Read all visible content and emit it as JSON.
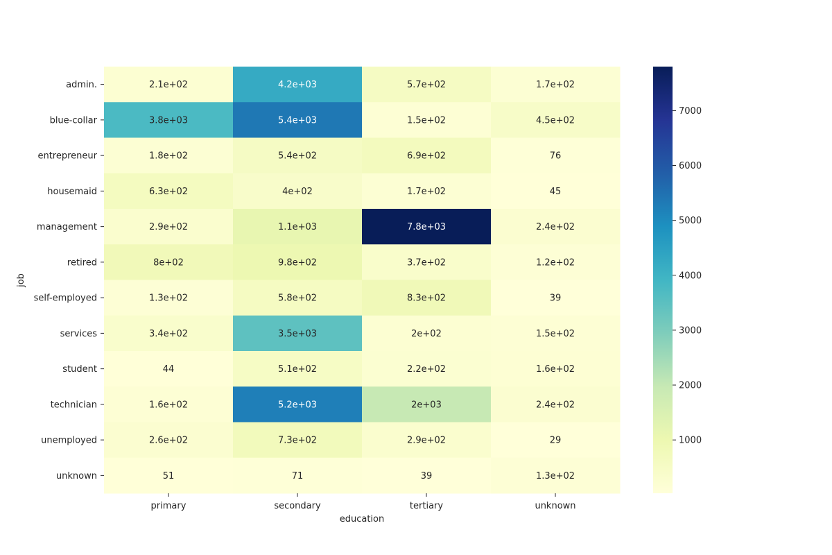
{
  "chart_data": {
    "type": "heatmap",
    "xlabel": "education",
    "ylabel": "job",
    "x_categories": [
      "primary",
      "secondary",
      "tertiary",
      "unknown"
    ],
    "y_categories": [
      "admin.",
      "blue-collar",
      "entrepreneur",
      "housemaid",
      "management",
      "retired",
      "self-employed",
      "services",
      "student",
      "technician",
      "unemployed",
      "unknown"
    ],
    "values": [
      [
        209,
        4219,
        572,
        171
      ],
      [
        3758,
        5371,
        149,
        454
      ],
      [
        183,
        542,
        686,
        76
      ],
      [
        627,
        395,
        173,
        45
      ],
      [
        294,
        1121,
        7801,
        242
      ],
      [
        795,
        984,
        366,
        119
      ],
      [
        130,
        577,
        833,
        39
      ],
      [
        345,
        3457,
        202,
        150
      ],
      [
        44,
        508,
        223,
        163
      ],
      [
        158,
        5229,
        1968,
        242
      ],
      [
        257,
        728,
        289,
        29
      ],
      [
        51,
        71,
        39,
        127
      ]
    ],
    "cell_labels": [
      [
        "2.1e+02",
        "4.2e+03",
        "5.7e+02",
        "1.7e+02"
      ],
      [
        "3.8e+03",
        "5.4e+03",
        "1.5e+02",
        "4.5e+02"
      ],
      [
        "1.8e+02",
        "5.4e+02",
        "6.9e+02",
        "76"
      ],
      [
        "6.3e+02",
        "4e+02",
        "1.7e+02",
        "45"
      ],
      [
        "2.9e+02",
        "1.1e+03",
        "7.8e+03",
        "2.4e+02"
      ],
      [
        "8e+02",
        "9.8e+02",
        "3.7e+02",
        "1.2e+02"
      ],
      [
        "1.3e+02",
        "5.8e+02",
        "8.3e+02",
        "39"
      ],
      [
        "3.4e+02",
        "3.5e+03",
        "2e+02",
        "1.5e+02"
      ],
      [
        "44",
        "5.1e+02",
        "2.2e+02",
        "1.6e+02"
      ],
      [
        "1.6e+02",
        "5.2e+03",
        "2e+03",
        "2.4e+02"
      ],
      [
        "2.6e+02",
        "7.3e+02",
        "2.9e+02",
        "29"
      ],
      [
        "51",
        "71",
        "39",
        "1.3e+02"
      ]
    ],
    "colormap": "YlGnBu",
    "colormap_stops": [
      "#ffffd9",
      "#edf8b1",
      "#c7e9b4",
      "#7fcdbb",
      "#41b6c4",
      "#1d91c0",
      "#225ea8",
      "#253494",
      "#081d58"
    ],
    "color_range": [
      29,
      7801
    ],
    "colorbar_ticks": [
      1000,
      2000,
      3000,
      4000,
      5000,
      6000,
      7000
    ],
    "grid": false
  }
}
